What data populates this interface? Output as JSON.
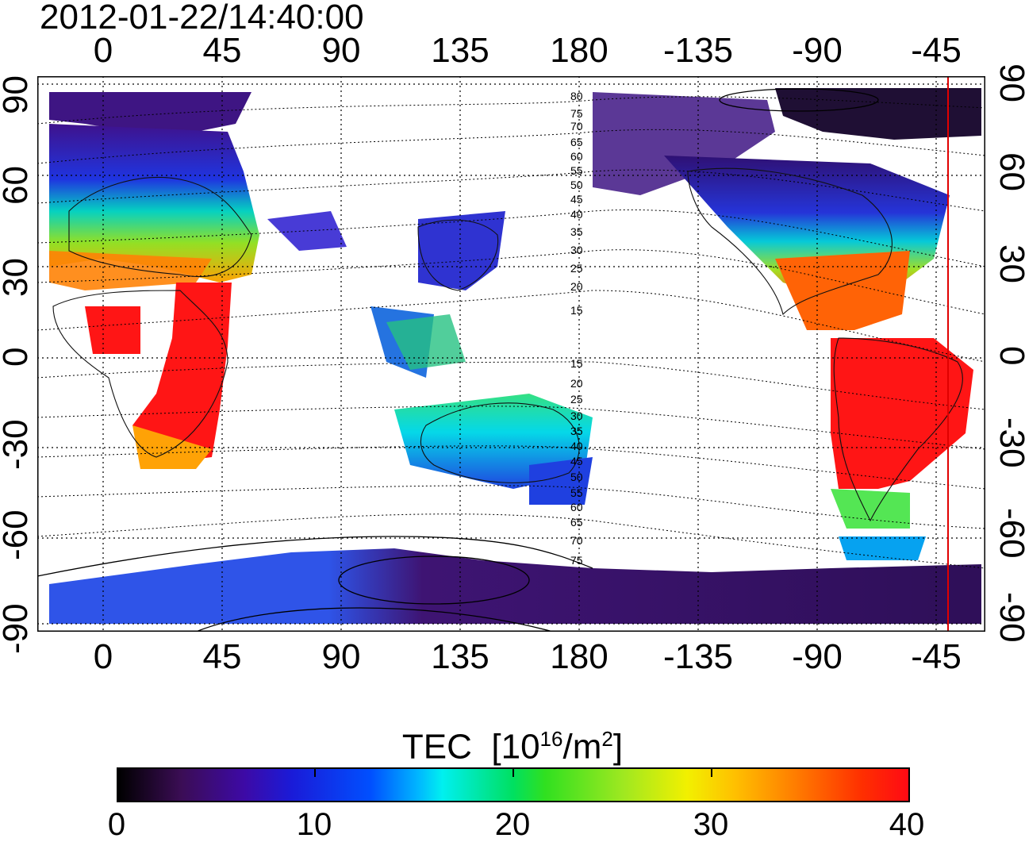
{
  "timestamp": "2012-01-22/14:40:00",
  "colors": {
    "scale": [
      "#000000",
      "#3d0aa6",
      "#1a1bd8",
      "#0050ff",
      "#00b7ff",
      "#00f0f0",
      "#00e060",
      "#a0e820",
      "#f2f000",
      "#ffc000",
      "#ff7a00",
      "#ff0a14"
    ],
    "marker_line": "#e00000",
    "grid": "#000000"
  },
  "chart_data": {
    "type": "heatmap",
    "title": "2012-01-22/14:40:00",
    "x_ticks_top": [
      "0",
      "45",
      "90",
      "135",
      "180",
      "-135",
      "-90",
      "-45"
    ],
    "x_ticks_bottom": [
      "0",
      "45",
      "90",
      "135",
      "180",
      "-135",
      "-90",
      "-45"
    ],
    "y_ticks_left": [
      "90",
      "60",
      "30",
      "0",
      "-30",
      "-60",
      "-90"
    ],
    "y_ticks_right": [
      "90",
      "60",
      "30",
      "0",
      "-30",
      "-60",
      "-90"
    ],
    "contour_labels": [
      "80",
      "75",
      "70",
      "65",
      "60",
      "55",
      "50",
      "45",
      "40",
      "35",
      "30",
      "25",
      "20",
      "15",
      "15",
      "20",
      "25",
      "30",
      "35",
      "40",
      "45",
      "50",
      "55",
      "60",
      "65",
      "70",
      "75"
    ],
    "colorbar": {
      "label_text": "TEC",
      "label_unit": "[10",
      "label_exp": "16",
      "label_unit2": "/m",
      "label_exp2": "2",
      "label_close": "]",
      "ticks": [
        "0",
        "10",
        "20",
        "30",
        "40"
      ],
      "range": [
        0,
        40
      ]
    },
    "marker_longitude": -47
  }
}
